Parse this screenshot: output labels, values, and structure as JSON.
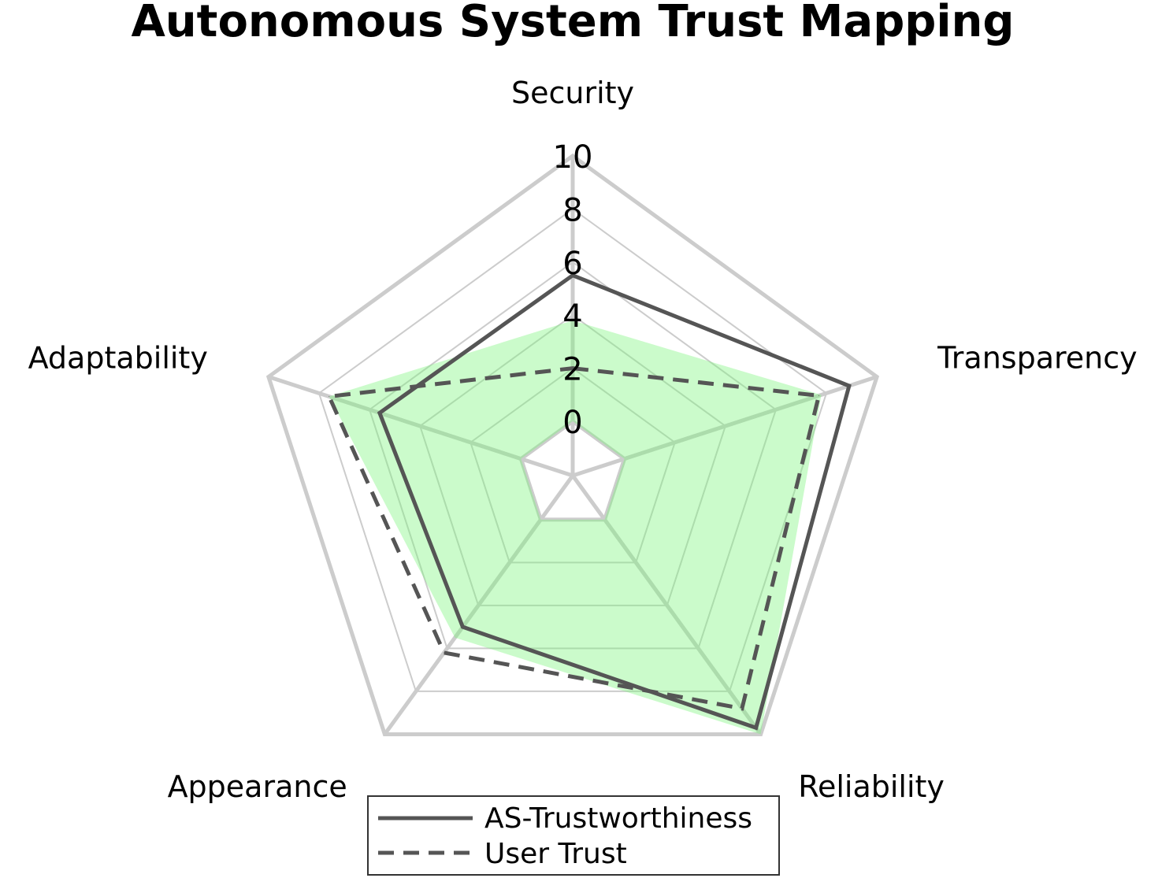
{
  "chart_data": {
    "type": "radar",
    "title": "Autonomous System Trust Mapping",
    "categories": [
      "Security",
      "Transparency",
      "Reliability",
      "Appearance",
      "Adaptability"
    ],
    "rlim": [
      0,
      10
    ],
    "r_ticks": [
      0,
      2,
      4,
      6,
      8,
      10
    ],
    "r_tick_labels": [
      "0",
      "2",
      "4",
      "6",
      "8",
      "10"
    ],
    "grid": true,
    "legend_position": "bottom-center",
    "shaded_region": {
      "values": [
        3.8,
        7.8,
        10,
        5.5,
        7.6
      ],
      "color": "#7ef57e"
    },
    "series": [
      {
        "name": "AS-Trustworthiness",
        "values": [
          5.5,
          8.9,
          9.7,
          5.0,
          5.6
        ],
        "color": "#555555",
        "linestyle": "solid"
      },
      {
        "name": "User Trust",
        "values": [
          2.0,
          7.7,
          8.8,
          6.2,
          7.6
        ],
        "color": "#555555",
        "linestyle": "dashed"
      }
    ]
  }
}
